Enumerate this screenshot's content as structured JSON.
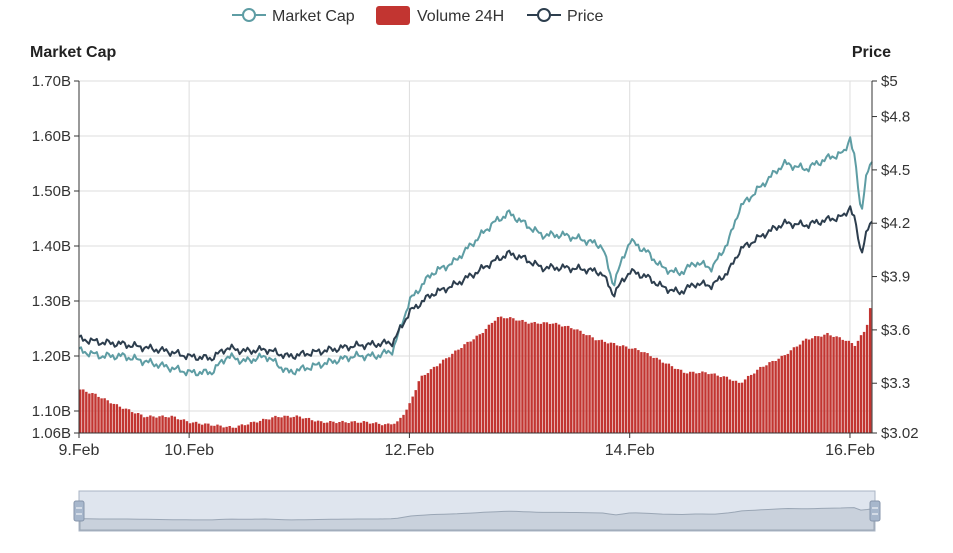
{
  "legend": {
    "market_cap": "Market Cap",
    "volume": "Volume 24H",
    "price": "Price"
  },
  "axes": {
    "left_title": "Market Cap",
    "right_title": "Price"
  },
  "colors": {
    "market_cap": "#5e9da4",
    "price": "#2d3e4e",
    "volume": "#c23531",
    "grid": "#dddddd",
    "slider_bg": "#dfe5ee",
    "slider_border": "#aab4c4",
    "slider_handle": "#a7b7cc"
  },
  "chart_data": {
    "type": "line",
    "x_labels": [
      "9.Feb",
      "10.Feb",
      "12.Feb",
      "14.Feb",
      "16.Feb"
    ],
    "x_label_positions_days": [
      0,
      1,
      3,
      5,
      7
    ],
    "x_range_days": [
      0,
      7.2
    ],
    "left_axis": {
      "ticks": [
        1.06,
        1.1,
        1.2,
        1.3,
        1.4,
        1.5,
        1.6,
        1.7
      ],
      "tick_labels": [
        "1.06B",
        "1.10B",
        "1.20B",
        "1.30B",
        "1.40B",
        "1.50B",
        "1.60B",
        "1.70B"
      ],
      "range": [
        1.06,
        1.7
      ],
      "unit": "B"
    },
    "right_axis": {
      "ticks": [
        3.02,
        3.3,
        3.6,
        3.9,
        4.2,
        4.5,
        4.8,
        5
      ],
      "tick_labels": [
        "$3.02",
        "$3.3",
        "$3.6",
        "$3.9",
        "$4.2",
        "$4.5",
        "$4.8",
        "$5"
      ],
      "range": [
        3.02,
        5.0
      ]
    },
    "grid": true,
    "legend_position": "top-center",
    "data_zoom_slider": true,
    "series": [
      {
        "name": "Market Cap",
        "type": "line",
        "axis": "left",
        "points": [
          [
            0,
            1.21
          ],
          [
            0.2,
            1.2
          ],
          [
            0.4,
            1.2
          ],
          [
            0.6,
            1.19
          ],
          [
            0.8,
            1.18
          ],
          [
            1.0,
            1.17
          ],
          [
            1.2,
            1.17
          ],
          [
            1.35,
            1.2
          ],
          [
            1.5,
            1.19
          ],
          [
            1.7,
            1.2
          ],
          [
            1.9,
            1.17
          ],
          [
            2.1,
            1.18
          ],
          [
            2.3,
            1.19
          ],
          [
            2.5,
            1.2
          ],
          [
            2.7,
            1.2
          ],
          [
            2.85,
            1.21
          ],
          [
            3.0,
            1.3
          ],
          [
            3.2,
            1.35
          ],
          [
            3.4,
            1.37
          ],
          [
            3.6,
            1.41
          ],
          [
            3.75,
            1.44
          ],
          [
            3.9,
            1.46
          ],
          [
            4.05,
            1.44
          ],
          [
            4.2,
            1.42
          ],
          [
            4.4,
            1.42
          ],
          [
            4.6,
            1.41
          ],
          [
            4.75,
            1.4
          ],
          [
            4.85,
            1.33
          ],
          [
            5.0,
            1.41
          ],
          [
            5.15,
            1.39
          ],
          [
            5.3,
            1.36
          ],
          [
            5.45,
            1.35
          ],
          [
            5.6,
            1.37
          ],
          [
            5.75,
            1.36
          ],
          [
            5.9,
            1.41
          ],
          [
            6.0,
            1.47
          ],
          [
            6.2,
            1.51
          ],
          [
            6.4,
            1.55
          ],
          [
            6.6,
            1.54
          ],
          [
            6.8,
            1.56
          ],
          [
            6.95,
            1.57
          ],
          [
            7.0,
            1.6
          ],
          [
            7.05,
            1.55
          ],
          [
            7.1,
            1.46
          ],
          [
            7.15,
            1.53
          ],
          [
            7.2,
            1.55
          ]
        ]
      },
      {
        "name": "Price",
        "type": "line",
        "axis": "right",
        "points": [
          [
            0,
            3.55
          ],
          [
            0.2,
            3.53
          ],
          [
            0.4,
            3.52
          ],
          [
            0.6,
            3.5
          ],
          [
            0.8,
            3.48
          ],
          [
            1.0,
            3.45
          ],
          [
            1.2,
            3.44
          ],
          [
            1.35,
            3.5
          ],
          [
            1.5,
            3.48
          ],
          [
            1.7,
            3.49
          ],
          [
            1.9,
            3.45
          ],
          [
            2.1,
            3.47
          ],
          [
            2.3,
            3.49
          ],
          [
            2.5,
            3.51
          ],
          [
            2.7,
            3.52
          ],
          [
            2.85,
            3.53
          ],
          [
            3.0,
            3.7
          ],
          [
            3.2,
            3.8
          ],
          [
            3.4,
            3.85
          ],
          [
            3.6,
            3.92
          ],
          [
            3.75,
            3.98
          ],
          [
            3.9,
            4.03
          ],
          [
            4.05,
            4.0
          ],
          [
            4.2,
            3.95
          ],
          [
            4.4,
            3.95
          ],
          [
            4.6,
            3.94
          ],
          [
            4.75,
            3.92
          ],
          [
            4.85,
            3.8
          ],
          [
            5.0,
            3.93
          ],
          [
            5.15,
            3.9
          ],
          [
            5.3,
            3.84
          ],
          [
            5.45,
            3.81
          ],
          [
            5.6,
            3.86
          ],
          [
            5.75,
            3.85
          ],
          [
            5.9,
            3.93
          ],
          [
            6.0,
            4.05
          ],
          [
            6.2,
            4.13
          ],
          [
            6.4,
            4.2
          ],
          [
            6.6,
            4.19
          ],
          [
            6.8,
            4.22
          ],
          [
            6.95,
            4.24
          ],
          [
            7.0,
            4.3
          ],
          [
            7.05,
            4.2
          ],
          [
            7.1,
            4.03
          ],
          [
            7.15,
            4.15
          ],
          [
            7.2,
            4.2
          ]
        ]
      },
      {
        "name": "Volume 24H",
        "type": "bar",
        "axis": "left",
        "points": [
          [
            0,
            1.14
          ],
          [
            0.15,
            1.13
          ],
          [
            0.35,
            1.11
          ],
          [
            0.6,
            1.09
          ],
          [
            0.85,
            1.09
          ],
          [
            1.0,
            1.08
          ],
          [
            1.2,
            1.075
          ],
          [
            1.4,
            1.07
          ],
          [
            1.6,
            1.08
          ],
          [
            1.8,
            1.09
          ],
          [
            2.0,
            1.09
          ],
          [
            2.2,
            1.08
          ],
          [
            2.4,
            1.08
          ],
          [
            2.6,
            1.08
          ],
          [
            2.8,
            1.075
          ],
          [
            2.9,
            1.08
          ],
          [
            3.0,
            1.11
          ],
          [
            3.1,
            1.16
          ],
          [
            3.3,
            1.19
          ],
          [
            3.5,
            1.22
          ],
          [
            3.65,
            1.24
          ],
          [
            3.8,
            1.27
          ],
          [
            3.9,
            1.27
          ],
          [
            4.1,
            1.26
          ],
          [
            4.3,
            1.26
          ],
          [
            4.5,
            1.25
          ],
          [
            4.7,
            1.23
          ],
          [
            4.9,
            1.22
          ],
          [
            5.1,
            1.21
          ],
          [
            5.3,
            1.19
          ],
          [
            5.5,
            1.17
          ],
          [
            5.7,
            1.17
          ],
          [
            5.9,
            1.16
          ],
          [
            6.0,
            1.15
          ],
          [
            6.2,
            1.18
          ],
          [
            6.4,
            1.2
          ],
          [
            6.6,
            1.23
          ],
          [
            6.8,
            1.24
          ],
          [
            6.95,
            1.23
          ],
          [
            7.05,
            1.22
          ],
          [
            7.15,
            1.25
          ],
          [
            7.2,
            1.3
          ]
        ]
      }
    ]
  }
}
